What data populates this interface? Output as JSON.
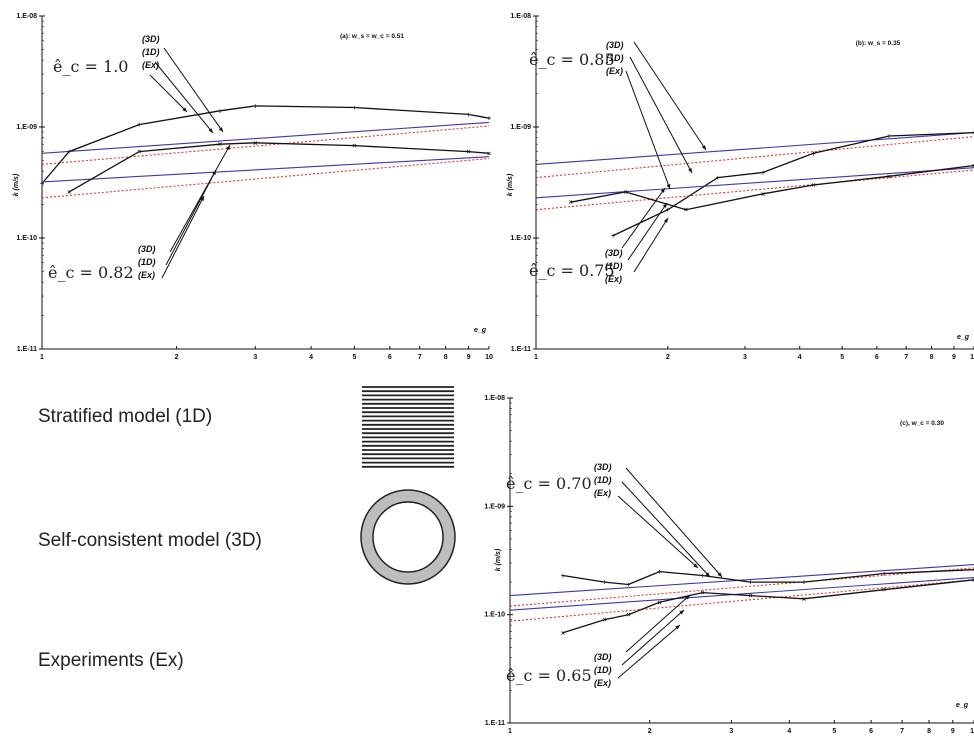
{
  "legend": {
    "stratified": "Stratified model (1D)",
    "self_consistent": "Self-consistent model (3D)",
    "experiments": "Experiments (Ex)"
  },
  "colors": {
    "model_3d": "#3a3aa8",
    "model_1d": "#e03030",
    "experiment": "#111111"
  },
  "chart_data": [
    {
      "id": "a",
      "type": "line",
      "title": "(a): w_s = w_c = 0.51",
      "xlabel": "e_g",
      "ylabel": "k (m/s)",
      "xscale": "log",
      "yscale": "log",
      "xlim": [
        1,
        10
      ],
      "ylim": [
        1e-11,
        1e-08
      ],
      "x_ticks": [
        "1",
        "2",
        "3",
        "4",
        "5",
        "6",
        "7",
        "8",
        "9",
        "10"
      ],
      "y_ticks": [
        "1.E-11",
        "1.E-10",
        "1.E-09",
        "1.E-08"
      ],
      "series": [
        {
          "group": "upper",
          "kind": "3D",
          "x": [
            1,
            10
          ],
          "y": [
            5.8e-10,
            1.1e-09
          ]
        },
        {
          "group": "upper",
          "kind": "1D",
          "x": [
            1,
            10
          ],
          "y": [
            4.6e-10,
            1.02e-09
          ]
        },
        {
          "group": "upper",
          "kind": "Ex",
          "x": [
            1.0,
            1.15,
            1.65,
            2.5,
            3.0,
            5.0,
            9.0,
            10.0
          ],
          "y": [
            3.1e-10,
            6e-10,
            1.05e-09,
            1.4e-09,
            1.55e-09,
            1.5e-09,
            1.3e-09,
            1.2e-09
          ]
        },
        {
          "group": "lower",
          "kind": "3D",
          "x": [
            1,
            10
          ],
          "y": [
            3.2e-10,
            5.4e-10
          ]
        },
        {
          "group": "lower",
          "kind": "1D",
          "x": [
            1,
            10
          ],
          "y": [
            2.3e-10,
            5.2e-10
          ]
        },
        {
          "group": "lower",
          "kind": "Ex",
          "x": [
            1.15,
            1.65,
            2.5,
            3.0,
            5.0,
            9.0,
            10.0
          ],
          "y": [
            2.6e-10,
            6e-10,
            7e-10,
            7.2e-10,
            6.8e-10,
            6e-10,
            5.8e-10
          ]
        }
      ],
      "annotations": [
        {
          "text": "ê_c = 1.0",
          "group": "upper"
        },
        {
          "text": "ê_c = 0.82",
          "group": "lower"
        }
      ],
      "labels_upper": [
        "(3D)",
        "(1D)",
        "(Ex)"
      ],
      "labels_lower": [
        "(3D)",
        "(1D)",
        "(Ex)"
      ]
    },
    {
      "id": "b",
      "type": "line",
      "title": "(b): w_s = 0.35",
      "xlabel": "e_g",
      "ylabel": "k (m/s)",
      "xscale": "log",
      "yscale": "log",
      "xlim": [
        1,
        10
      ],
      "ylim": [
        1e-11,
        1e-08
      ],
      "x_ticks": [
        "1",
        "2",
        "3",
        "4",
        "5",
        "6",
        "7",
        "8",
        "9",
        "10"
      ],
      "y_ticks": [
        "1.E-11",
        "1.E-10",
        "1.E-09",
        "1.E-08"
      ],
      "series": [
        {
          "group": "upper",
          "kind": "3D",
          "x": [
            1,
            10
          ],
          "y": [
            4.6e-10,
            8.9e-10
          ]
        },
        {
          "group": "upper",
          "kind": "1D",
          "x": [
            1,
            10
          ],
          "y": [
            3.5e-10,
            8.2e-10
          ]
        },
        {
          "group": "upper",
          "kind": "Ex",
          "x": [
            1.5,
            2.0,
            2.6,
            3.3,
            4.3,
            6.4,
            10.0
          ],
          "y": [
            1.05e-10,
            1.8e-10,
            3.5e-10,
            3.9e-10,
            5.8e-10,
            8.3e-10,
            8.9e-10
          ]
        },
        {
          "group": "lower",
          "kind": "3D",
          "x": [
            1,
            10
          ],
          "y": [
            2.3e-10,
            4.3e-10
          ]
        },
        {
          "group": "lower",
          "kind": "1D",
          "x": [
            1,
            10
          ],
          "y": [
            1.8e-10,
            4.1e-10
          ]
        },
        {
          "group": "lower",
          "kind": "Ex",
          "x": [
            1.2,
            1.6,
            2.2,
            3.3,
            4.3,
            6.4,
            10.0
          ],
          "y": [
            2.1e-10,
            2.6e-10,
            1.8e-10,
            2.5e-10,
            3e-10,
            3.6e-10,
            4.5e-10
          ]
        }
      ],
      "annotations": [
        {
          "text": "ê_c = 0.85",
          "group": "upper"
        },
        {
          "text": "ê_c = 0.75",
          "group": "lower"
        }
      ],
      "labels_upper": [
        "(3D)",
        "(1D)",
        "(Ex)"
      ],
      "labels_lower": [
        "(3D)",
        "(1D)",
        "(Ex)"
      ]
    },
    {
      "id": "c",
      "type": "line",
      "title": "(c), w_c = 0.30",
      "xlabel": "e_g",
      "ylabel": "k (m/s)",
      "xscale": "log",
      "yscale": "log",
      "xlim": [
        1,
        10
      ],
      "ylim": [
        1e-11,
        1e-08
      ],
      "x_ticks": [
        "1",
        "2",
        "3",
        "4",
        "5",
        "6",
        "7",
        "8",
        "9",
        "10"
      ],
      "y_ticks": [
        "1.E-11",
        "1.E-10",
        "1.E-09",
        "1.E-08"
      ],
      "series": [
        {
          "group": "upper",
          "kind": "3D",
          "x": [
            1,
            10
          ],
          "y": [
            1.5e-10,
            2.9e-10
          ]
        },
        {
          "group": "upper",
          "kind": "1D",
          "x": [
            1,
            10
          ],
          "y": [
            1.2e-10,
            2.7e-10
          ]
        },
        {
          "group": "upper",
          "kind": "Ex",
          "x": [
            1.3,
            1.6,
            1.8,
            2.1,
            2.6,
            3.3,
            4.3,
            6.4,
            10.0
          ],
          "y": [
            2.3e-10,
            2e-10,
            1.9e-10,
            2.5e-10,
            2.3e-10,
            2e-10,
            2e-10,
            2.4e-10,
            2.6e-10
          ]
        },
        {
          "group": "lower",
          "kind": "3D",
          "x": [
            1,
            10
          ],
          "y": [
            1.1e-10,
            2.2e-10
          ]
        },
        {
          "group": "lower",
          "kind": "1D",
          "x": [
            1,
            10
          ],
          "y": [
            8.7e-11,
            2.1e-10
          ]
        },
        {
          "group": "lower",
          "kind": "Ex",
          "x": [
            1.3,
            1.6,
            1.8,
            2.1,
            2.6,
            3.3,
            4.3,
            6.4,
            10.0
          ],
          "y": [
            6.8e-11,
            9e-11,
            1e-10,
            1.3e-10,
            1.6e-10,
            1.5e-10,
            1.4e-10,
            1.7e-10,
            2.1e-10
          ]
        }
      ],
      "annotations": [
        {
          "text": "ê_c = 0.70",
          "group": "upper"
        },
        {
          "text": "ê_c = 0.65",
          "group": "lower"
        }
      ],
      "labels_upper": [
        "(3D)",
        "(1D)",
        "(Ex)"
      ],
      "labels_lower": [
        "(3D)",
        "(1D)",
        "(Ex)"
      ]
    }
  ]
}
